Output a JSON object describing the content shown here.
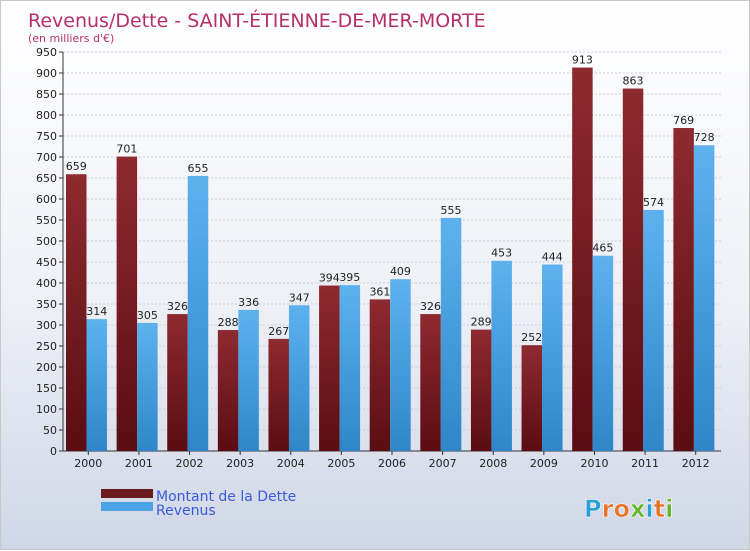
{
  "chart_data": {
    "type": "bar",
    "title": "Revenus/Dette - SAINT-ÉTIENNE-DE-MER-MORTE",
    "subtitle": "(en milliers d'€)",
    "categories": [
      "2000",
      "2001",
      "2002",
      "2003",
      "2004",
      "2005",
      "2006",
      "2007",
      "2008",
      "2009",
      "2010",
      "2011",
      "2012"
    ],
    "series": [
      {
        "name": "Montant de la Dette",
        "color": "#7a1f24",
        "values": [
          659,
          701,
          326,
          288,
          267,
          394,
          361,
          326,
          289,
          252,
          913,
          863,
          769
        ]
      },
      {
        "name": "Revenus",
        "color": "#4aa3e2",
        "values": [
          314,
          305,
          655,
          336,
          347,
          395,
          409,
          555,
          453,
          444,
          465,
          574,
          728
        ]
      }
    ],
    "ylim": [
      0,
      950
    ],
    "yticks": [
      0,
      50,
      100,
      150,
      200,
      250,
      300,
      350,
      400,
      450,
      500,
      550,
      600,
      650,
      700,
      750,
      800,
      850,
      900,
      950
    ],
    "grid": true,
    "legend_position": "bottom-left"
  },
  "logo": {
    "text": "Proxiti",
    "letters": [
      {
        "ch": "P",
        "color": "#2a9fd8"
      },
      {
        "ch": "r",
        "color": "#e8732a"
      },
      {
        "ch": "o",
        "color": "#e8732a"
      },
      {
        "ch": "x",
        "color": "#6ab42d"
      },
      {
        "ch": "i",
        "color": "#2a9fd8"
      },
      {
        "ch": "t",
        "color": "#e8732a"
      },
      {
        "ch": "i",
        "color": "#6ab42d"
      }
    ]
  }
}
